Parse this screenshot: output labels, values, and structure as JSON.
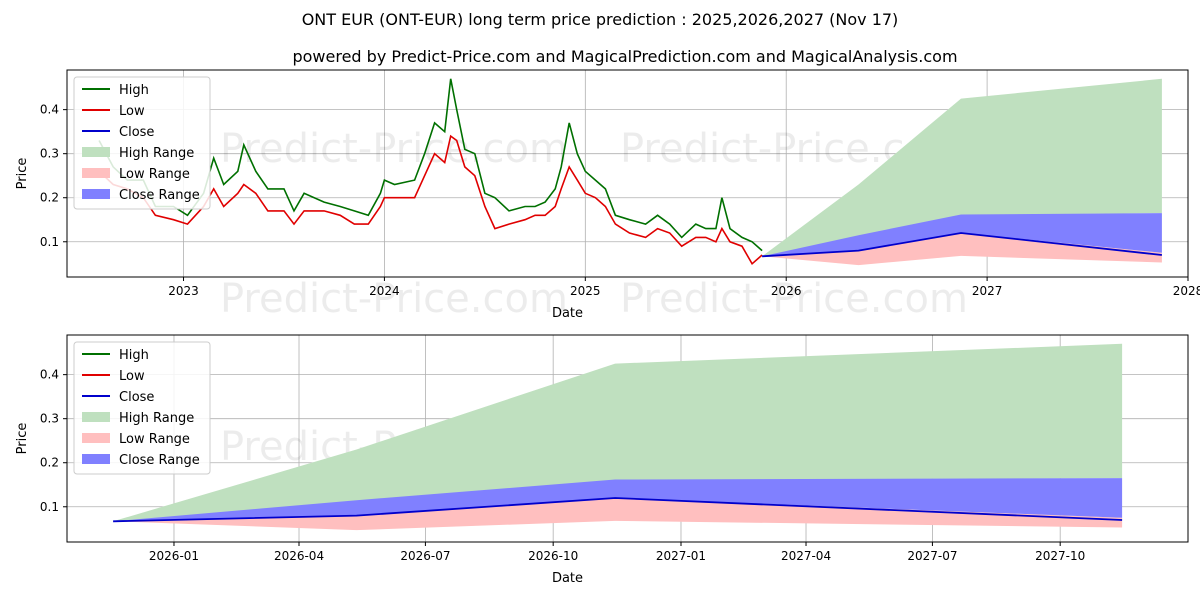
{
  "title": "ONT EUR (ONT-EUR) long term price prediction : 2025,2026,2027 (Nov 17)",
  "subtitle": "powered by Predict-Price.com and MagicalPrediction.com and MagicalAnalysis.com",
  "watermark": "Predict-Price.com",
  "colors": {
    "high": "#007000",
    "low": "#e00000",
    "close": "#0000cc",
    "high_range": "#bfe0bf",
    "low_range": "#ffbfbf",
    "close_range": "#8080ff"
  },
  "legend": [
    "High",
    "Low",
    "Close",
    "High Range",
    "Low Range",
    "Close Range"
  ],
  "chart_data": [
    {
      "type": "line",
      "name": "long-term",
      "xlabel": "Date",
      "ylabel": "Price",
      "xlim": [
        2022.42,
        2028.0
      ],
      "ylim": [
        0.02,
        0.49
      ],
      "xticks": [
        2023,
        2024,
        2025,
        2026,
        2027,
        2028
      ],
      "xtick_labels": [
        "2023",
        "2024",
        "2025",
        "2026",
        "2027",
        "2028"
      ],
      "yticks": [
        0.1,
        0.2,
        0.3,
        0.4
      ],
      "ytick_labels": [
        "0.1",
        "0.2",
        "0.3",
        "0.4"
      ],
      "history_high": [
        [
          2022.58,
          0.33
        ],
        [
          2022.65,
          0.27
        ],
        [
          2022.72,
          0.24
        ],
        [
          2022.8,
          0.24
        ],
        [
          2022.86,
          0.18
        ],
        [
          2022.95,
          0.18
        ],
        [
          2023.02,
          0.16
        ],
        [
          2023.1,
          0.21
        ],
        [
          2023.15,
          0.29
        ],
        [
          2023.2,
          0.23
        ],
        [
          2023.27,
          0.26
        ],
        [
          2023.3,
          0.32
        ],
        [
          2023.36,
          0.26
        ],
        [
          2023.42,
          0.22
        ],
        [
          2023.5,
          0.22
        ],
        [
          2023.55,
          0.17
        ],
        [
          2023.6,
          0.21
        ],
        [
          2023.7,
          0.19
        ],
        [
          2023.78,
          0.18
        ],
        [
          2023.85,
          0.17
        ],
        [
          2023.92,
          0.16
        ],
        [
          2023.98,
          0.21
        ],
        [
          2024.0,
          0.24
        ],
        [
          2024.05,
          0.23
        ],
        [
          2024.15,
          0.24
        ],
        [
          2024.2,
          0.3
        ],
        [
          2024.25,
          0.37
        ],
        [
          2024.3,
          0.35
        ],
        [
          2024.33,
          0.47
        ],
        [
          2024.36,
          0.4
        ],
        [
          2024.4,
          0.31
        ],
        [
          2024.45,
          0.3
        ],
        [
          2024.5,
          0.21
        ],
        [
          2024.55,
          0.2
        ],
        [
          2024.62,
          0.17
        ],
        [
          2024.7,
          0.18
        ],
        [
          2024.75,
          0.18
        ],
        [
          2024.8,
          0.19
        ],
        [
          2024.85,
          0.22
        ],
        [
          2024.88,
          0.27
        ],
        [
          2024.92,
          0.37
        ],
        [
          2024.96,
          0.3
        ],
        [
          2025.0,
          0.26
        ],
        [
          2025.05,
          0.24
        ],
        [
          2025.1,
          0.22
        ],
        [
          2025.15,
          0.16
        ],
        [
          2025.22,
          0.15
        ],
        [
          2025.3,
          0.14
        ],
        [
          2025.36,
          0.16
        ],
        [
          2025.42,
          0.14
        ],
        [
          2025.48,
          0.11
        ],
        [
          2025.55,
          0.14
        ],
        [
          2025.6,
          0.13
        ],
        [
          2025.65,
          0.13
        ],
        [
          2025.68,
          0.2
        ],
        [
          2025.72,
          0.13
        ],
        [
          2025.78,
          0.11
        ],
        [
          2025.83,
          0.1
        ],
        [
          2025.88,
          0.08
        ]
      ],
      "history_low": [
        [
          2022.58,
          0.26
        ],
        [
          2022.65,
          0.23
        ],
        [
          2022.72,
          0.22
        ],
        [
          2022.8,
          0.2
        ],
        [
          2022.86,
          0.16
        ],
        [
          2022.95,
          0.15
        ],
        [
          2023.02,
          0.14
        ],
        [
          2023.1,
          0.18
        ],
        [
          2023.15,
          0.22
        ],
        [
          2023.2,
          0.18
        ],
        [
          2023.27,
          0.21
        ],
        [
          2023.3,
          0.23
        ],
        [
          2023.36,
          0.21
        ],
        [
          2023.42,
          0.17
        ],
        [
          2023.5,
          0.17
        ],
        [
          2023.55,
          0.14
        ],
        [
          2023.6,
          0.17
        ],
        [
          2023.7,
          0.17
        ],
        [
          2023.78,
          0.16
        ],
        [
          2023.85,
          0.14
        ],
        [
          2023.92,
          0.14
        ],
        [
          2023.98,
          0.18
        ],
        [
          2024.0,
          0.2
        ],
        [
          2024.05,
          0.2
        ],
        [
          2024.15,
          0.2
        ],
        [
          2024.2,
          0.25
        ],
        [
          2024.25,
          0.3
        ],
        [
          2024.3,
          0.28
        ],
        [
          2024.33,
          0.34
        ],
        [
          2024.36,
          0.33
        ],
        [
          2024.4,
          0.27
        ],
        [
          2024.45,
          0.25
        ],
        [
          2024.5,
          0.18
        ],
        [
          2024.55,
          0.13
        ],
        [
          2024.62,
          0.14
        ],
        [
          2024.7,
          0.15
        ],
        [
          2024.75,
          0.16
        ],
        [
          2024.8,
          0.16
        ],
        [
          2024.85,
          0.18
        ],
        [
          2024.88,
          0.22
        ],
        [
          2024.92,
          0.27
        ],
        [
          2024.96,
          0.24
        ],
        [
          2025.0,
          0.21
        ],
        [
          2025.05,
          0.2
        ],
        [
          2025.1,
          0.18
        ],
        [
          2025.15,
          0.14
        ],
        [
          2025.22,
          0.12
        ],
        [
          2025.3,
          0.11
        ],
        [
          2025.36,
          0.13
        ],
        [
          2025.42,
          0.12
        ],
        [
          2025.48,
          0.09
        ],
        [
          2025.55,
          0.11
        ],
        [
          2025.6,
          0.11
        ],
        [
          2025.65,
          0.1
        ],
        [
          2025.68,
          0.13
        ],
        [
          2025.72,
          0.1
        ],
        [
          2025.78,
          0.09
        ],
        [
          2025.83,
          0.05
        ],
        [
          2025.88,
          0.07
        ]
      ],
      "forecast_x": [
        2025.88,
        2026.36,
        2026.87,
        2027.87
      ],
      "close": [
        0.067,
        0.08,
        0.12,
        0.07
      ],
      "high_range": [
        [
          0.067,
          0.067
        ],
        [
          0.08,
          0.23
        ],
        [
          0.16,
          0.425
        ],
        [
          0.165,
          0.47
        ]
      ],
      "low_range": [
        [
          0.067,
          0.067
        ],
        [
          0.047,
          0.08
        ],
        [
          0.068,
          0.12
        ],
        [
          0.053,
          0.075
        ]
      ],
      "close_range": [
        [
          0.067,
          0.067
        ],
        [
          0.08,
          0.115
        ],
        [
          0.12,
          0.162
        ],
        [
          0.075,
          0.165
        ]
      ]
    },
    {
      "type": "line",
      "name": "forecast-zoom",
      "xlabel": "Date",
      "ylabel": "Price",
      "xlim": [
        2025.789,
        2028.0
      ],
      "ylim": [
        0.02,
        0.49
      ],
      "xticks": [
        2026.0,
        2026.2466,
        2026.4959,
        2026.7479,
        2027.0,
        2027.2466,
        2027.4959,
        2027.7479
      ],
      "xtick_labels": [
        "2026-01",
        "2026-04",
        "2026-07",
        "2026-10",
        "2027-01",
        "2027-04",
        "2027-07",
        "2027-10"
      ],
      "yticks": [
        0.1,
        0.2,
        0.3,
        0.4
      ],
      "ytick_labels": [
        "0.1",
        "0.2",
        "0.3",
        "0.4"
      ],
      "forecast_x": [
        2025.88,
        2026.36,
        2026.87,
        2027.87
      ],
      "close": [
        0.067,
        0.08,
        0.12,
        0.07
      ],
      "high_range": [
        [
          0.067,
          0.067
        ],
        [
          0.08,
          0.23
        ],
        [
          0.16,
          0.425
        ],
        [
          0.165,
          0.47
        ]
      ],
      "low_range": [
        [
          0.067,
          0.067
        ],
        [
          0.047,
          0.08
        ],
        [
          0.068,
          0.12
        ],
        [
          0.053,
          0.075
        ]
      ],
      "close_range": [
        [
          0.067,
          0.067
        ],
        [
          0.08,
          0.115
        ],
        [
          0.12,
          0.162
        ],
        [
          0.075,
          0.165
        ]
      ]
    }
  ]
}
